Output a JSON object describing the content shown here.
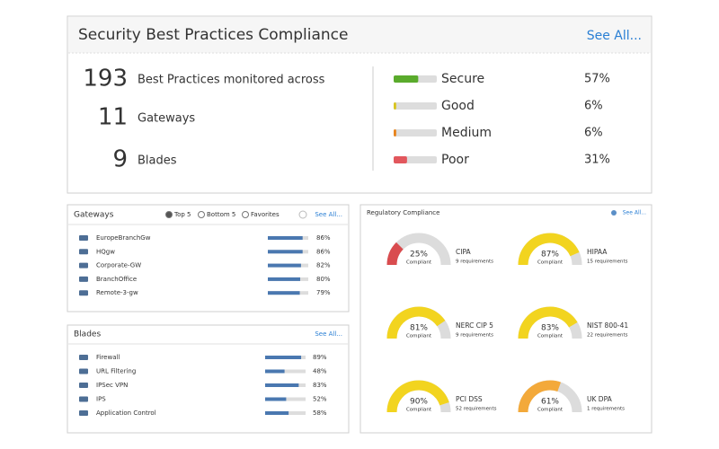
{
  "summary": {
    "title": "Security Best Practices Compliance",
    "see_all": "See All...",
    "stats": [
      {
        "number": "193",
        "label": "Best Practices monitored across"
      },
      {
        "number": "11",
        "label": "Gateways"
      },
      {
        "number": "9",
        "label": "Blades"
      }
    ],
    "levels": [
      {
        "name": "Secure",
        "value": 57,
        "label": "57%",
        "color": "#5aab2c"
      },
      {
        "name": "Good",
        "value": 6,
        "label": "6%",
        "color": "#d9c520"
      },
      {
        "name": "Medium",
        "value": 6,
        "label": "6%",
        "color": "#e8841c"
      },
      {
        "name": "Poor",
        "value": 31,
        "label": "31%",
        "color": "#e2575d"
      }
    ]
  },
  "gateways": {
    "title": "Gateways",
    "options": [
      "Top 5",
      "Bottom 5",
      "Favorites"
    ],
    "see_all": "See All...",
    "rows": [
      {
        "name": "EuropeBranchGw",
        "value": 86,
        "label": "86%"
      },
      {
        "name": "HQgw",
        "value": 86,
        "label": "86%"
      },
      {
        "name": "Corporate-GW",
        "value": 82,
        "label": "82%"
      },
      {
        "name": "BranchOffice",
        "value": 80,
        "label": "80%"
      },
      {
        "name": "Remote-3-gw",
        "value": 79,
        "label": "79%"
      }
    ]
  },
  "blades": {
    "title": "Blades",
    "see_all": "See All...",
    "rows": [
      {
        "name": "Firewall",
        "value": 89,
        "label": "89%"
      },
      {
        "name": "URL Filtering",
        "value": 48,
        "label": "48%"
      },
      {
        "name": "IPSec VPN",
        "value": 83,
        "label": "83%"
      },
      {
        "name": "IPS",
        "value": 52,
        "label": "52%"
      },
      {
        "name": "Application Control",
        "value": 58,
        "label": "58%"
      }
    ]
  },
  "regulatory": {
    "title": "Regulatory Compliance",
    "see_all": "See All...",
    "gauges": [
      {
        "name": "CIPA",
        "value": 25,
        "label": "25%",
        "sublabel": "Compliant",
        "requirements": "9 requirements",
        "color": "#d94c4f"
      },
      {
        "name": "HIPAA",
        "value": 87,
        "label": "87%",
        "sublabel": "Compliant",
        "requirements": "15 requirements",
        "color": "#f2d41f"
      },
      {
        "name": "NERC CIP 5",
        "value": 81,
        "label": "81%",
        "sublabel": "Compliant",
        "requirements": "9 requirements",
        "color": "#f2d41f"
      },
      {
        "name": "NIST 800-41",
        "value": 83,
        "label": "83%",
        "sublabel": "Compliant",
        "requirements": "22 requirements",
        "color": "#f2d41f"
      },
      {
        "name": "PCI DSS",
        "value": 90,
        "label": "90%",
        "sublabel": "Compliant",
        "requirements": "52 requirements",
        "color": "#f2d41f"
      },
      {
        "name": "UK DPA",
        "value": 61,
        "label": "61%",
        "sublabel": "Compliant",
        "requirements": "1 requirements",
        "color": "#f3a93a"
      }
    ]
  }
}
